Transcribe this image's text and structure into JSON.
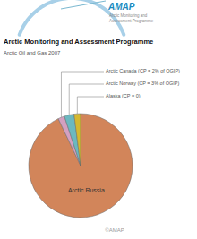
{
  "chart_data": {
    "type": "pie",
    "title": "Arctic Monitoring and Assessment Programme",
    "subtitle": "Arctic Oil and Gas 2007",
    "categories": [
      "Arctic Russia",
      "Arctic Canada (CP = 2% of OGIP)",
      "Arctic Norway (CP = 3% of OGIP)",
      "Alaska (CP = 0)"
    ],
    "values": [
      92,
      2,
      3,
      2
    ],
    "colors": [
      "#D2855A",
      "#D4A0C0",
      "#6BB8C0",
      "#D4B830"
    ],
    "annotations": [
      "AMAP",
      "Arctic Monitoring and",
      "Assessment Programme",
      "©AMAP"
    ]
  }
}
